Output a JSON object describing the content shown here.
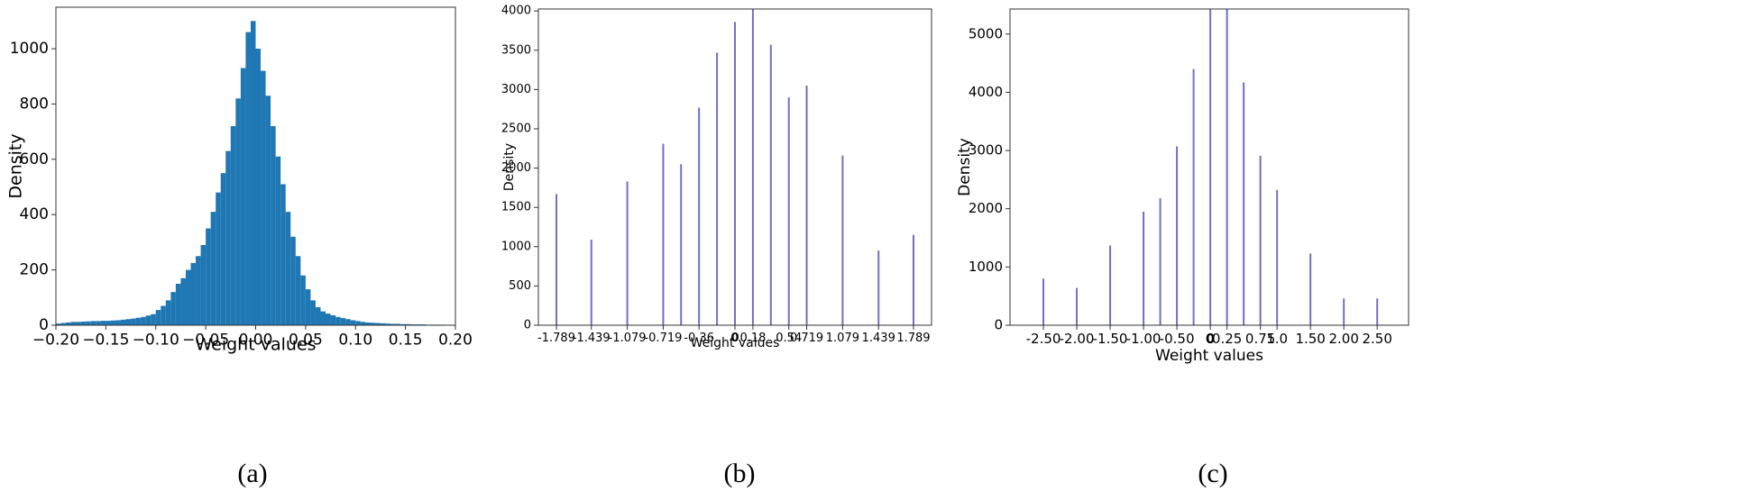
{
  "chart_data": [
    {
      "type": "histogram",
      "caption": "(a)",
      "xlabel": "Weight values",
      "ylabel": "Density",
      "color": "#1f77b4",
      "bins": [
        -0.2,
        -0.195,
        -0.19,
        -0.185,
        -0.18,
        -0.175,
        -0.17,
        -0.165,
        -0.16,
        -0.155,
        -0.15,
        -0.145,
        -0.14,
        -0.135,
        -0.13,
        -0.125,
        -0.12,
        -0.115,
        -0.11,
        -0.105,
        -0.1,
        -0.095,
        -0.09,
        -0.085,
        -0.08,
        -0.075,
        -0.07,
        -0.065,
        -0.06,
        -0.055,
        -0.05,
        -0.045,
        -0.04,
        -0.035,
        -0.03,
        -0.025,
        -0.02,
        -0.015,
        -0.01,
        -0.005,
        0,
        0.005,
        0.01,
        0.015,
        0.02,
        0.025,
        0.03,
        0.035,
        0.04,
        0.045,
        0.05,
        0.055,
        0.06,
        0.065,
        0.07,
        0.075,
        0.08,
        0.085,
        0.09,
        0.095,
        0.1,
        0.105,
        0.11,
        0.115,
        0.12,
        0.125,
        0.13,
        0.135,
        0.14,
        0.145,
        0.15,
        0.155,
        0.16,
        0.165,
        0.17,
        0.175,
        0.18,
        0.185,
        0.19,
        0.195,
        0.2
      ],
      "counts": [
        6,
        8,
        10,
        12,
        12,
        13,
        14,
        15,
        15,
        16,
        16,
        17,
        18,
        20,
        22,
        24,
        27,
        30,
        35,
        40,
        55,
        70,
        90,
        120,
        150,
        170,
        200,
        225,
        250,
        290,
        350,
        410,
        480,
        550,
        630,
        720,
        820,
        930,
        1060,
        1100,
        1000,
        920,
        830,
        720,
        610,
        510,
        410,
        320,
        250,
        180,
        130,
        90,
        65,
        50,
        42,
        36,
        30,
        26,
        22,
        18,
        15,
        12,
        10,
        9,
        8,
        7,
        6,
        5,
        5,
        4,
        4,
        3,
        3,
        3,
        2,
        2,
        2,
        2,
        1,
        1
      ],
      "xlim": [
        -0.2,
        0.2
      ],
      "ylim": [
        0,
        1150
      ],
      "xticks": [
        {
          "value": -0.2,
          "label": "−0.20"
        },
        {
          "value": -0.15,
          "label": "−0.15"
        },
        {
          "value": -0.1,
          "label": "−0.10"
        },
        {
          "value": -0.05,
          "label": "−0.05"
        },
        {
          "value": 0,
          "label": "0.00"
        },
        {
          "value": 0.05,
          "label": "0.05"
        },
        {
          "value": 0.1,
          "label": "0.10"
        },
        {
          "value": 0.15,
          "label": "0.15"
        },
        {
          "value": 0.2,
          "label": "0.20"
        }
      ],
      "yticks": [
        0,
        200,
        400,
        600,
        800,
        1000
      ]
    },
    {
      "type": "stem",
      "caption": "(b)",
      "xlabel": "Weight values",
      "ylabel": "Density",
      "color": "#7070c4",
      "x": [
        -1.789,
        -1.439,
        -1.079,
        -0.719,
        -0.54,
        -0.36,
        -0.18,
        0,
        0.18,
        0.36,
        0.54,
        0.719,
        1.079,
        1.439,
        1.789
      ],
      "values": [
        1670,
        1090,
        1830,
        2310,
        2050,
        2770,
        3470,
        3860,
        4025,
        3570,
        2900,
        3050,
        2160,
        950,
        1150
      ],
      "xlim": [
        -1.97,
        1.97
      ],
      "ylim": [
        0,
        4025
      ],
      "xticks": [
        -1.789,
        -1.439,
        -1.079,
        -0.719,
        -0.36,
        0,
        0.18,
        0.54,
        0.719,
        1.079,
        1.439,
        1.789
      ],
      "yticks": [
        0,
        500,
        1000,
        1500,
        2000,
        2500,
        3000,
        3500,
        4000
      ]
    },
    {
      "type": "stem",
      "caption": "(c)",
      "xlabel": "Weight values",
      "ylabel": "Density",
      "color": "#7070c4",
      "x": [
        -2.5,
        -2,
        -1.5,
        -1,
        -0.75,
        -0.5,
        -0.25,
        0,
        0.25,
        0.5,
        0.75,
        1,
        1.5,
        2,
        2.5
      ],
      "values": [
        800,
        640,
        1370,
        1950,
        2180,
        3070,
        4400,
        5430,
        5430,
        4170,
        2910,
        2320,
        1230,
        460,
        460
      ],
      "xlim": [
        -3,
        2.97
      ],
      "ylim": [
        0,
        5430
      ],
      "xticks": [
        {
          "value": -2.5,
          "label": "-2.50"
        },
        {
          "value": -2,
          "label": "-2.00"
        },
        {
          "value": -1.5,
          "label": "-1.50"
        },
        {
          "value": -1,
          "label": "-1.00"
        },
        {
          "value": -0.5,
          "label": "-0.50"
        },
        0,
        0.25,
        0.75,
        {
          "value": 1,
          "label": "1.0"
        },
        {
          "value": 1.5,
          "label": "1.50"
        },
        {
          "value": 2,
          "label": "2.00"
        },
        {
          "value": 2.5,
          "label": "2.50"
        }
      ],
      "yticks": [
        0,
        1000,
        2000,
        3000,
        4000,
        5000
      ]
    }
  ]
}
